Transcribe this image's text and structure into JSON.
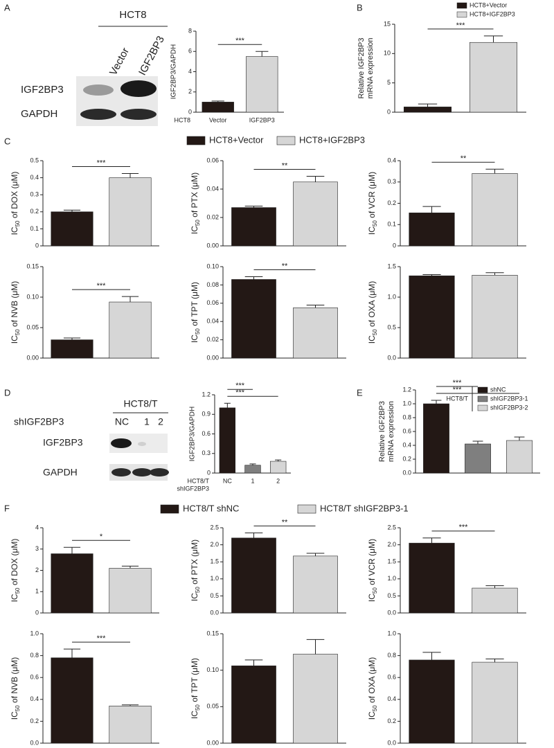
{
  "panels": [
    "A",
    "B",
    "C",
    "D",
    "E",
    "F"
  ],
  "blots": [
    {
      "header": "HCT8",
      "lanes": [
        "Vector",
        "IGF2BP3"
      ],
      "rows": [
        "IGF2BP3",
        "GAPDH"
      ]
    },
    {
      "header": "HCT8/T",
      "lane_title": "shIGF2BP3",
      "lanes": [
        "NC",
        "1",
        "2"
      ],
      "rows": [
        "IGF2BP3",
        "GAPDH"
      ]
    }
  ],
  "figure_legends": [
    {
      "entries": [
        "HCT8+Vector",
        "HCT8+IGF2BP3"
      ],
      "colors": [
        "#231815",
        "#d6d6d6"
      ]
    },
    {
      "entries": [
        "HCT8/T shNC",
        "HCT8/T shIGF2BP3-1"
      ],
      "colors": [
        "#231815",
        "#d6d6d6"
      ]
    }
  ],
  "chart_data": [
    {
      "type": "bar",
      "ylabel": "IGF2BP3/GAPDH",
      "xrow_label": [
        "HCT8"
      ],
      "categories": [
        "Vector",
        "IGF2BP3"
      ],
      "values": [
        1.0,
        5.5
      ],
      "errors": [
        0.1,
        0.5
      ],
      "colors": [
        "#231815",
        "#d6d6d6"
      ],
      "ylim": [
        0,
        8
      ],
      "yticks": [
        0,
        2,
        4,
        6,
        8
      ],
      "sig": [
        "***"
      ]
    },
    {
      "type": "bar",
      "ylabel_lines": [
        "Relative IGF2BP3",
        "mRNA expression"
      ],
      "legend": [
        "HCT8+Vector",
        "HCT8+IGF2BP3"
      ],
      "values": [
        0.9,
        11.9
      ],
      "errors": [
        0.5,
        1.1
      ],
      "colors": [
        "#231815",
        "#d6d6d6"
      ],
      "ylim": [
        0,
        15
      ],
      "yticks": [
        0,
        5,
        10,
        15
      ],
      "sig": [
        "***"
      ]
    },
    {
      "type": "bar",
      "ylabel_parts": [
        "IC",
        "50",
        " of DOX (μM)"
      ],
      "values": [
        0.2,
        0.4
      ],
      "errors": [
        0.01,
        0.025
      ],
      "colors": [
        "#231815",
        "#d6d6d6"
      ],
      "ylim": [
        0,
        0.5
      ],
      "yticks": [
        0,
        0.1,
        0.2,
        0.3,
        0.4,
        0.5
      ],
      "sig": [
        "***"
      ]
    },
    {
      "type": "bar",
      "ylabel_parts": [
        "IC",
        "50",
        " of PTX (μM)"
      ],
      "values": [
        0.027,
        0.045
      ],
      "errors": [
        0.001,
        0.004
      ],
      "colors": [
        "#231815",
        "#d6d6d6"
      ],
      "ylim": [
        0,
        0.06
      ],
      "yticks": [
        {
          "value": 0,
          "label": "0.00"
        },
        0.02,
        0.04,
        0.06
      ],
      "sig": [
        "**"
      ]
    },
    {
      "type": "bar",
      "ylabel_parts": [
        "IC",
        "50",
        " of VCR (μM)"
      ],
      "values": [
        0.155,
        0.34
      ],
      "errors": [
        0.03,
        0.02
      ],
      "colors": [
        "#231815",
        "#d6d6d6"
      ],
      "ylim": [
        0,
        0.4
      ],
      "yticks": [
        0,
        0.1,
        0.2,
        0.3,
        0.4
      ],
      "sig": [
        "**"
      ]
    },
    {
      "type": "bar",
      "ylabel_parts": [
        "IC",
        "50",
        " of NVB (μM)"
      ],
      "values": [
        0.03,
        0.092
      ],
      "errors": [
        0.003,
        0.009
      ],
      "colors": [
        "#231815",
        "#d6d6d6"
      ],
      "ylim": [
        0,
        0.15
      ],
      "yticks": [
        {
          "value": 0,
          "label": "0.00"
        },
        0.05,
        {
          "value": 0.1,
          "label": "0.10"
        },
        0.15
      ],
      "sig": [
        "***"
      ]
    },
    {
      "type": "bar",
      "ylabel_parts": [
        "IC",
        "50",
        " of TPT (μM)"
      ],
      "values": [
        0.086,
        0.055
      ],
      "errors": [
        0.003,
        0.003
      ],
      "colors": [
        "#231815",
        "#d6d6d6"
      ],
      "ylim": [
        0,
        0.1
      ],
      "yticks": [
        {
          "value": 0,
          "label": "0.00"
        },
        0.02,
        0.04,
        0.06,
        0.08,
        {
          "value": 0.1,
          "label": "0.10"
        }
      ],
      "sig": [
        "**"
      ]
    },
    {
      "type": "bar",
      "ylabel_parts": [
        "IC",
        "50",
        " of OXA (μM)"
      ],
      "values": [
        1.35,
        1.36
      ],
      "errors": [
        0.02,
        0.04
      ],
      "colors": [
        "#231815",
        "#d6d6d6"
      ],
      "ylim": [
        0,
        1.5
      ],
      "yticks": [
        {
          "value": 0,
          "label": "0.0"
        },
        0.5,
        {
          "value": 1,
          "label": "1.0"
        },
        1.5
      ],
      "sig": []
    },
    {
      "type": "bar",
      "ylabel": "IGF2BP3/GAPDH",
      "xrow_label": [
        "HCT8/T",
        "shIGF2BP3"
      ],
      "categories": [
        "NC",
        "1",
        "2"
      ],
      "values": [
        1.0,
        0.12,
        0.18
      ],
      "errors": [
        0.07,
        0.02,
        0.02
      ],
      "colors": [
        "#231815",
        "#7f7f7f",
        "#d6d6d6"
      ],
      "ylim": [
        0,
        1.2
      ],
      "yticks": [
        0,
        0.3,
        0.6,
        0.9,
        1.2
      ],
      "sig": [
        "***",
        "***"
      ]
    },
    {
      "type": "bar",
      "ylabel_lines": [
        "Relative IGF2BP3",
        "mRNA expression"
      ],
      "legend_title": "HCT8/T",
      "legend": [
        "shNC",
        "shIGF2BP3-1",
        "shIGF2BP3-2"
      ],
      "values": [
        1.0,
        0.42,
        0.47
      ],
      "errors": [
        0.05,
        0.04,
        0.05
      ],
      "colors": [
        "#231815",
        "#7f7f7f",
        "#d6d6d6"
      ],
      "ylim": [
        0,
        1.2
      ],
      "yticks": [
        {
          "value": 0,
          "label": "0.0"
        },
        0.2,
        0.4,
        0.6,
        0.8,
        {
          "value": 1,
          "label": "1.0"
        },
        1.2
      ],
      "sig": [
        "***",
        "***"
      ]
    },
    {
      "type": "bar",
      "ylabel_parts": [
        "IC",
        "50",
        " of DOX (μM)"
      ],
      "values": [
        2.78,
        2.1
      ],
      "errors": [
        0.3,
        0.1
      ],
      "colors": [
        "#231815",
        "#d6d6d6"
      ],
      "ylim": [
        0,
        4
      ],
      "yticks": [
        0,
        1,
        2,
        3,
        4
      ],
      "sig": [
        "*"
      ]
    },
    {
      "type": "bar",
      "ylabel_parts": [
        "IC",
        "50",
        " of PTX (μM)"
      ],
      "values": [
        2.2,
        1.67
      ],
      "errors": [
        0.15,
        0.08
      ],
      "colors": [
        "#231815",
        "#d6d6d6"
      ],
      "ylim": [
        0,
        2.5
      ],
      "yticks": [
        {
          "value": 0,
          "label": "0.0"
        },
        0.5,
        {
          "value": 1,
          "label": "1.0"
        },
        1.5,
        {
          "value": 2,
          "label": "2.0"
        },
        2.5
      ],
      "sig": [
        "**"
      ]
    },
    {
      "type": "bar",
      "ylabel_parts": [
        "IC",
        "50",
        " of VCR (μM)"
      ],
      "values": [
        2.05,
        0.73
      ],
      "errors": [
        0.15,
        0.07
      ],
      "colors": [
        "#231815",
        "#d6d6d6"
      ],
      "ylim": [
        0,
        2.5
      ],
      "yticks": [
        {
          "value": 0,
          "label": "0.0"
        },
        0.5,
        {
          "value": 1,
          "label": "1.0"
        },
        1.5,
        {
          "value": 2,
          "label": "2.0"
        },
        2.5
      ],
      "sig": [
        "***"
      ]
    },
    {
      "type": "bar",
      "ylabel_parts": [
        "IC",
        "50",
        " of NVB (μM)"
      ],
      "values": [
        0.78,
        0.34
      ],
      "errors": [
        0.08,
        0.01
      ],
      "colors": [
        "#231815",
        "#d6d6d6"
      ],
      "ylim": [
        0,
        1.0
      ],
      "yticks": [
        {
          "value": 0,
          "label": "0.0"
        },
        0.2,
        0.4,
        0.6,
        0.8,
        {
          "value": 1,
          "label": "1.0"
        }
      ],
      "sig": [
        "***"
      ]
    },
    {
      "type": "bar",
      "ylabel_parts": [
        "IC",
        "50",
        " of TPT (μM)"
      ],
      "values": [
        0.106,
        0.122
      ],
      "errors": [
        0.008,
        0.02
      ],
      "colors": [
        "#231815",
        "#d6d6d6"
      ],
      "ylim": [
        0,
        0.15
      ],
      "yticks": [
        {
          "value": 0,
          "label": "0.00"
        },
        0.05,
        {
          "value": 0.1,
          "label": "0.10"
        },
        0.15
      ],
      "sig": []
    },
    {
      "type": "bar",
      "ylabel_parts": [
        "IC",
        "50",
        " of OXA (μM)"
      ],
      "values": [
        0.76,
        0.74
      ],
      "errors": [
        0.07,
        0.03
      ],
      "colors": [
        "#231815",
        "#d6d6d6"
      ],
      "ylim": [
        0,
        1.0
      ],
      "yticks": [
        {
          "value": 0,
          "label": "0.0"
        },
        0.2,
        0.4,
        0.6,
        0.8,
        {
          "value": 1,
          "label": "1.0"
        }
      ],
      "sig": []
    }
  ]
}
